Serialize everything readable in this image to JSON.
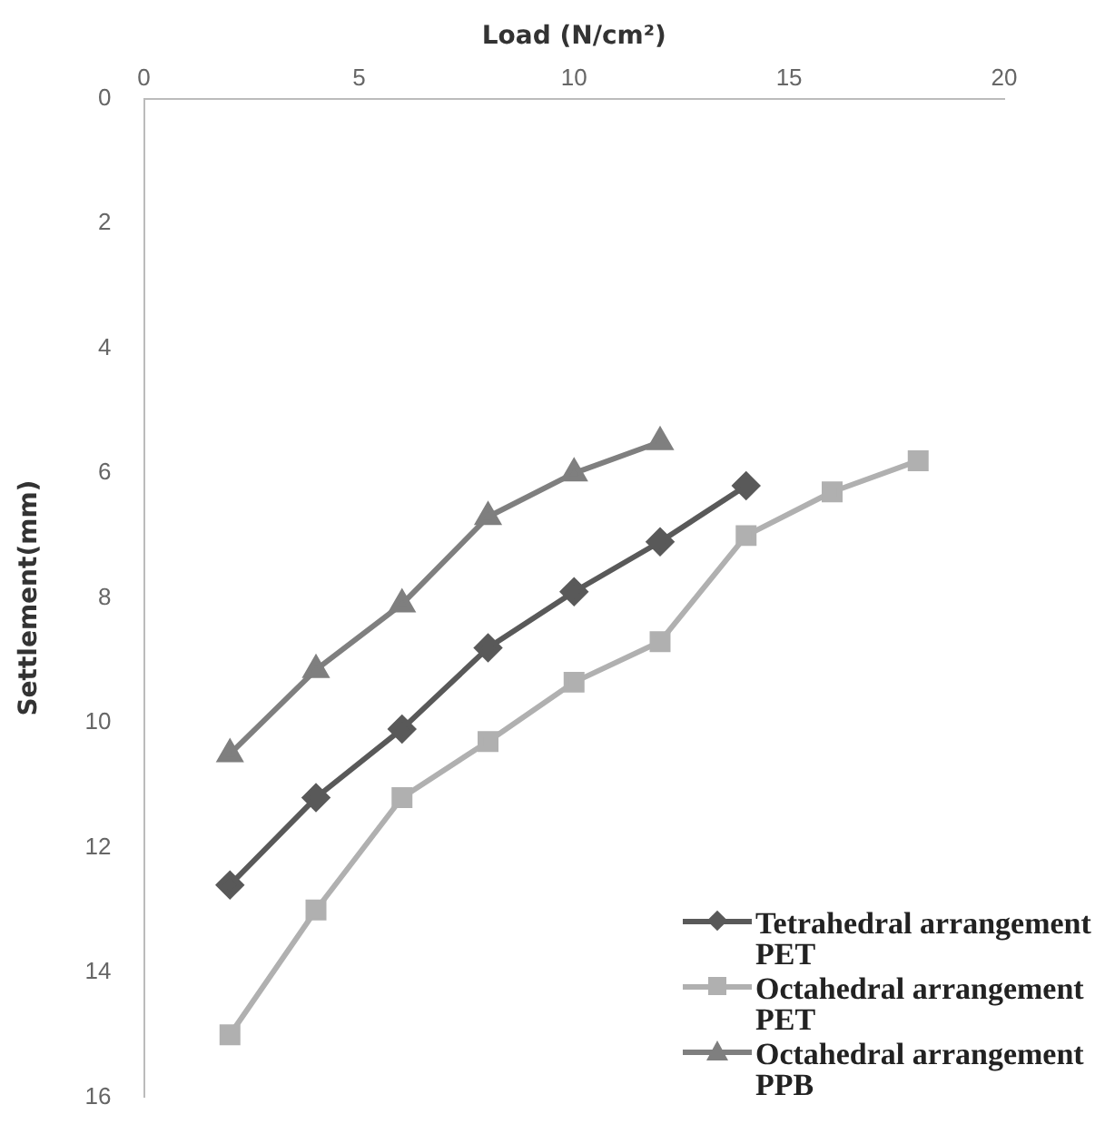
{
  "chart_data": {
    "type": "line",
    "xlabel": "Load (N/cm²)",
    "ylabel": "Settlement(mm)",
    "x": [
      2,
      4,
      6,
      8,
      10,
      12,
      14,
      16,
      18
    ],
    "xlim": [
      0,
      20
    ],
    "xticks": [
      0,
      5,
      10,
      15,
      20
    ],
    "ylim": [
      16,
      0
    ],
    "yticks": [
      0,
      2,
      4,
      6,
      8,
      10,
      12,
      14,
      16
    ],
    "grid": false,
    "legend": "bottom right",
    "line_style": "solid",
    "series": [
      {
        "name": "Tetrahedral arrangement PET",
        "color": "#595959",
        "marker": "diamond",
        "values": [
          12.6,
          11.2,
          10.1,
          8.8,
          7.9,
          7.1,
          6.2,
          null,
          null
        ]
      },
      {
        "name": "Octahedral arrangement PET",
        "color": "#b0b0b0",
        "marker": "square",
        "values": [
          15.0,
          13.0,
          11.2,
          10.3,
          9.35,
          8.7,
          7.0,
          6.3,
          5.8
        ]
      },
      {
        "name": "Octahedral arrangement PPB",
        "color": "#7f7f7f",
        "marker": "triangle",
        "values": [
          10.5,
          9.15,
          8.1,
          6.7,
          6.0,
          5.5,
          null,
          null,
          null
        ]
      }
    ]
  }
}
